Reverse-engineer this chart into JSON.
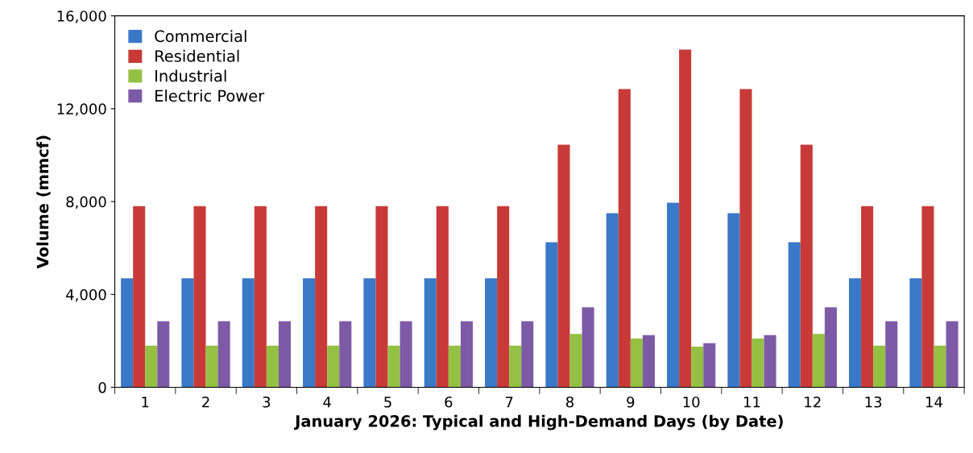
{
  "chart_data": {
    "type": "bar",
    "xlabel": "January 2026: Typical and High-Demand Days (by Date)",
    "ylabel": "Volume (mmcf)",
    "categories": [
      "1",
      "2",
      "3",
      "4",
      "5",
      "6",
      "7",
      "8",
      "9",
      "10",
      "11",
      "12",
      "13",
      "14"
    ],
    "series": [
      {
        "name": "Commercial",
        "color": "#3a78c8",
        "values": [
          4700,
          4700,
          4700,
          4700,
          4700,
          4700,
          4700,
          6250,
          7500,
          7950,
          7500,
          6250,
          4700,
          4700
        ]
      },
      {
        "name": "Residential",
        "color": "#c83a38",
        "values": [
          7800,
          7800,
          7800,
          7800,
          7800,
          7800,
          7800,
          10450,
          12850,
          14550,
          12850,
          10450,
          7800,
          7800
        ]
      },
      {
        "name": "Industrial",
        "color": "#94c043",
        "values": [
          1800,
          1800,
          1800,
          1800,
          1800,
          1800,
          1800,
          2300,
          2100,
          1750,
          2100,
          2300,
          1800,
          1800
        ]
      },
      {
        "name": "Electric Power",
        "color": "#7d5aa6",
        "values": [
          2850,
          2850,
          2850,
          2850,
          2850,
          2850,
          2850,
          3450,
          2250,
          1900,
          2250,
          3450,
          2850,
          2850
        ]
      }
    ],
    "ylim": [
      0,
      16000
    ],
    "yticks": [
      {
        "value": 0,
        "label": "0"
      },
      {
        "value": 4000,
        "label": "4,000"
      },
      {
        "value": 8000,
        "label": "8,000"
      },
      {
        "value": 12000,
        "label": "12,000"
      },
      {
        "value": 16000,
        "label": "16,000"
      }
    ],
    "grid": false,
    "legend": "top left"
  }
}
